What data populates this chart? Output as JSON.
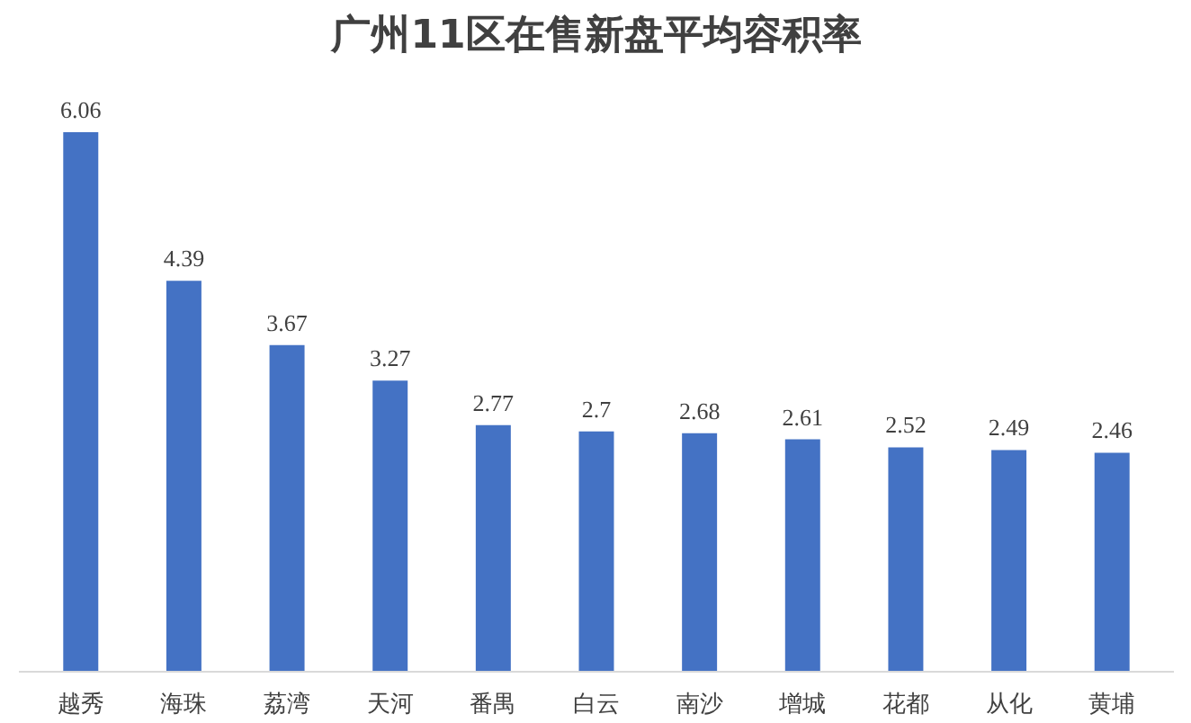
{
  "chart_data": {
    "type": "bar",
    "title": "广州11区在售新盘平均容积率",
    "categories": [
      "越秀",
      "海珠",
      "荔湾",
      "天河",
      "番禺",
      "白云",
      "南沙",
      "增城",
      "花都",
      "从化",
      "黄埔"
    ],
    "values": [
      6.06,
      4.39,
      3.67,
      3.27,
      2.77,
      2.7,
      2.68,
      2.61,
      2.52,
      2.49,
      2.46
    ],
    "color": "#4472c4",
    "data_labels": true,
    "grid": false
  }
}
